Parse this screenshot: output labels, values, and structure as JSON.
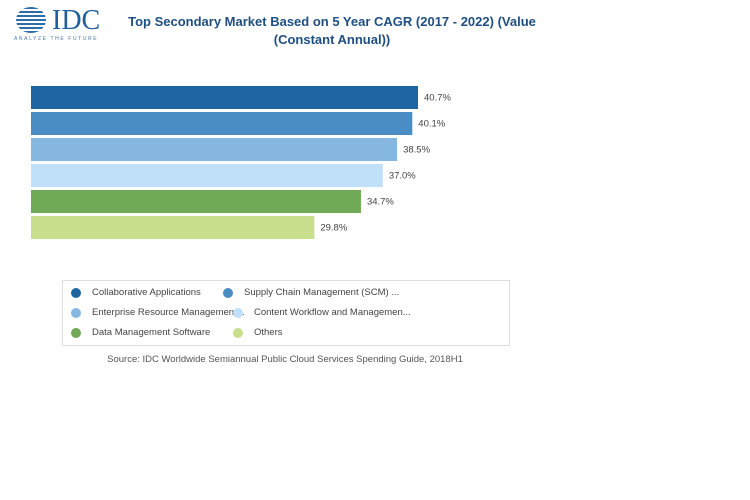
{
  "logo": {
    "text": "IDC",
    "tagline": "ANALYZE THE FUTURE"
  },
  "chart_data": {
    "type": "bar",
    "orientation": "horizontal",
    "title": "Top Secondary Market Based on 5 Year CAGR  (2017 - 2022) (Value (Constant Annual))",
    "categories": [
      "Collaborative Applications",
      "Supply Chain Management (SCM) ...",
      "Enterprise Resource Management...",
      "Content Workflow and Managemen...",
      "Data Management Software",
      "Others"
    ],
    "values": [
      40.7,
      40.1,
      38.5,
      37.0,
      34.7,
      29.8
    ],
    "labels": [
      "40.7%",
      "40.1%",
      "38.5%",
      "37.0%",
      "34.7%",
      "29.8%"
    ],
    "colors": [
      "#1f65a1",
      "#4a8cc4",
      "#86b7e1",
      "#c0e0fa",
      "#70aa56",
      "#c9df8d"
    ],
    "xlim": [
      0,
      40.7
    ],
    "legend": "bottom",
    "grid": false
  },
  "source": "Source: IDC Worldwide Semiannual Public Cloud Services Spending Guide, 2018H1"
}
